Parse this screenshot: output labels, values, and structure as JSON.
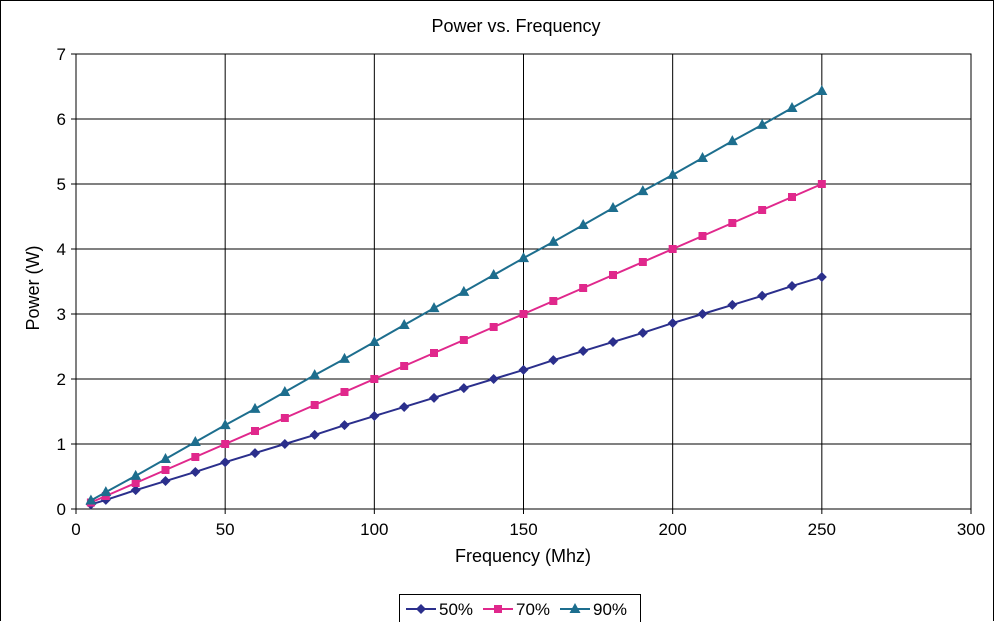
{
  "chart_data": {
    "type": "line",
    "title": "Power vs. Frequency",
    "xlabel": "Frequency (Mhz)",
    "ylabel": "Power (W)",
    "xlim": [
      0,
      300
    ],
    "ylim": [
      0,
      7
    ],
    "xticks": [
      0,
      50,
      100,
      150,
      200,
      250,
      300
    ],
    "yticks": [
      0,
      1,
      2,
      3,
      4,
      5,
      6,
      7
    ],
    "grid": true,
    "legend_position": "bottom",
    "x": [
      5,
      10,
      20,
      30,
      40,
      50,
      60,
      70,
      80,
      90,
      100,
      110,
      120,
      130,
      140,
      150,
      160,
      170,
      180,
      190,
      200,
      210,
      220,
      230,
      240,
      250
    ],
    "series": [
      {
        "name": "50%",
        "color": "#2b2f8c",
        "marker": "diamond",
        "values": [
          0.07,
          0.14,
          0.29,
          0.43,
          0.57,
          0.72,
          0.86,
          1.0,
          1.14,
          1.29,
          1.43,
          1.57,
          1.71,
          1.86,
          2.0,
          2.14,
          2.29,
          2.43,
          2.57,
          2.71,
          2.86,
          3.0,
          3.14,
          3.28,
          3.43,
          3.57
        ]
      },
      {
        "name": "70%",
        "color": "#e0288c",
        "marker": "square",
        "values": [
          0.1,
          0.2,
          0.4,
          0.6,
          0.8,
          1.0,
          1.2,
          1.4,
          1.6,
          1.8,
          2.0,
          2.2,
          2.4,
          2.6,
          2.8,
          3.0,
          3.2,
          3.4,
          3.6,
          3.8,
          4.0,
          4.2,
          4.4,
          4.6,
          4.8,
          5.0
        ]
      },
      {
        "name": "90%",
        "color": "#1d6e8e",
        "marker": "triangle",
        "values": [
          0.13,
          0.26,
          0.51,
          0.77,
          1.03,
          1.29,
          1.54,
          1.8,
          2.06,
          2.31,
          2.57,
          2.83,
          3.09,
          3.34,
          3.6,
          3.86,
          4.11,
          4.37,
          4.63,
          4.89,
          5.14,
          5.4,
          5.66,
          5.91,
          6.17,
          6.43
        ]
      }
    ]
  }
}
